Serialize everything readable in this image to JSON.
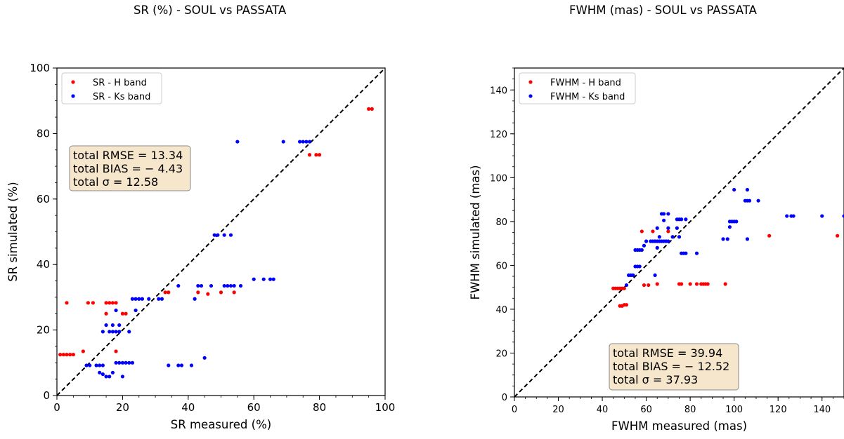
{
  "chart_data": [
    {
      "type": "scatter",
      "title": "SR (%) - SOUL vs PASSATA",
      "xlabel": "SR measured (%)",
      "ylabel": "SR simulated (%)",
      "xlim": [
        0,
        100
      ],
      "ylim": [
        0,
        100
      ],
      "xticks": [
        "0",
        "20",
        "40",
        "60",
        "80",
        "100"
      ],
      "yticks": [
        "0",
        "20",
        "40",
        "60",
        "80",
        "100"
      ],
      "legend_position": "top-left",
      "identity_line": true,
      "stats_box": {
        "position": "upper-left",
        "lines": [
          "total RMSE = 13.34",
          "total BIAS = − 4.43",
          "total σ = 12.58"
        ]
      },
      "series": [
        {
          "name": "SR - H band",
          "color": "#ff0000",
          "points": [
            [
              1,
              12.5
            ],
            [
              2,
              12.5
            ],
            [
              3,
              12.5
            ],
            [
              4,
              12.5
            ],
            [
              5,
              12.5
            ],
            [
              3,
              28.3
            ],
            [
              8,
              13.5
            ],
            [
              9.5,
              28.3
            ],
            [
              11,
              28.3
            ],
            [
              15,
              28.3
            ],
            [
              16,
              28.3
            ],
            [
              17,
              28.3
            ],
            [
              18,
              28.3
            ],
            [
              15,
              25
            ],
            [
              20,
              25
            ],
            [
              21,
              25
            ],
            [
              18,
              13.5
            ],
            [
              33,
              31.5
            ],
            [
              34,
              31.5
            ],
            [
              43,
              31.5
            ],
            [
              46,
              31
            ],
            [
              50,
              31.5
            ],
            [
              54,
              31.5
            ],
            [
              77,
              73.5
            ],
            [
              79,
              73.5
            ],
            [
              80,
              73.5
            ],
            [
              95,
              87.5
            ],
            [
              96,
              87.5
            ]
          ]
        },
        {
          "name": "SR - Ks band",
          "color": "#0000ff",
          "points": [
            [
              9,
              9.2
            ],
            [
              10,
              9.2
            ],
            [
              12,
              9.2
            ],
            [
              13,
              9.2
            ],
            [
              14,
              9.2
            ],
            [
              13,
              7
            ],
            [
              14,
              6.5
            ],
            [
              15,
              5.8
            ],
            [
              16,
              5.8
            ],
            [
              17,
              7
            ],
            [
              18,
              10
            ],
            [
              19,
              10
            ],
            [
              20,
              10
            ],
            [
              21,
              10
            ],
            [
              22,
              10
            ],
            [
              23,
              10
            ],
            [
              20,
              5.8
            ],
            [
              14,
              19.5
            ],
            [
              16,
              19.5
            ],
            [
              17,
              19.5
            ],
            [
              18,
              19.5
            ],
            [
              19,
              19.5
            ],
            [
              22,
              19.5
            ],
            [
              15,
              21.5
            ],
            [
              17,
              21.5
            ],
            [
              19,
              21.5
            ],
            [
              18,
              26
            ],
            [
              23,
              29.5
            ],
            [
              24,
              29.5
            ],
            [
              25,
              29.5
            ],
            [
              26,
              29.5
            ],
            [
              28,
              29.5
            ],
            [
              31,
              29.5
            ],
            [
              32,
              29.5
            ],
            [
              24,
              26
            ],
            [
              34,
              9.2
            ],
            [
              37,
              9.2
            ],
            [
              38,
              9.2
            ],
            [
              41,
              9.2
            ],
            [
              45,
              11.5
            ],
            [
              37,
              33.5
            ],
            [
              42,
              29.5
            ],
            [
              43,
              33.5
            ],
            [
              44,
              33.5
            ],
            [
              47,
              33.5
            ],
            [
              51,
              33.5
            ],
            [
              52,
              33.5
            ],
            [
              53,
              33.5
            ],
            [
              54,
              33.5
            ],
            [
              56,
              33.5
            ],
            [
              60,
              35.5
            ],
            [
              63,
              35.5
            ],
            [
              65,
              35.5
            ],
            [
              66,
              35.5
            ],
            [
              48,
              49
            ],
            [
              49,
              49
            ],
            [
              51,
              49
            ],
            [
              53,
              49
            ],
            [
              55,
              77.5
            ],
            [
              69,
              77.5
            ],
            [
              74,
              77.5
            ],
            [
              75,
              77.5
            ],
            [
              76,
              77.5
            ],
            [
              77,
              77.5
            ]
          ]
        }
      ]
    },
    {
      "type": "scatter",
      "title": "FWHM (mas) - SOUL vs PASSATA",
      "xlabel": "FWHM measured (mas)",
      "ylabel": "FWHM simulated (mas)",
      "xlim": [
        0,
        150
      ],
      "ylim": [
        0,
        150
      ],
      "xticks": [
        "0",
        "20",
        "40",
        "60",
        "80",
        "100",
        "120",
        "140"
      ],
      "yticks": [
        "0",
        "20",
        "40",
        "60",
        "80",
        "100",
        "120",
        "140"
      ],
      "legend_position": "top-left",
      "identity_line": true,
      "stats_box": {
        "position": "lower-center",
        "lines": [
          "total RMSE = 39.94",
          "total BIAS = − 12.52",
          "total σ = 37.93"
        ]
      },
      "series": [
        {
          "name": "FWHM - H band",
          "color": "#ff0000",
          "points": [
            [
              45,
              49.5
            ],
            [
              46,
              49.5
            ],
            [
              47,
              49.5
            ],
            [
              48,
              49.5
            ],
            [
              49,
              49.5
            ],
            [
              50,
              49.5
            ],
            [
              48,
              41.5
            ],
            [
              49,
              41.5
            ],
            [
              50,
              42
            ],
            [
              51,
              42
            ],
            [
              58,
              75.5
            ],
            [
              59,
              51
            ],
            [
              61,
              51
            ],
            [
              63,
              75.5
            ],
            [
              65,
              51.5
            ],
            [
              70,
              75.5
            ],
            [
              75,
              51.5
            ],
            [
              76,
              51.5
            ],
            [
              80,
              51.5
            ],
            [
              83,
              51.5
            ],
            [
              85,
              51.5
            ],
            [
              86,
              51.5
            ],
            [
              87,
              51.5
            ],
            [
              88,
              51.5
            ],
            [
              96,
              51.5
            ],
            [
              116,
              73.5
            ],
            [
              147,
              73.5
            ]
          ]
        },
        {
          "name": "FWHM - Ks band",
          "color": "#0000ff",
          "points": [
            [
              51,
              51
            ],
            [
              52,
              55.5
            ],
            [
              53,
              55.5
            ],
            [
              54,
              55.5
            ],
            [
              55,
              59.5
            ],
            [
              56,
              59.5
            ],
            [
              57,
              59.5
            ],
            [
              55,
              67
            ],
            [
              56,
              67
            ],
            [
              57,
              67
            ],
            [
              58,
              67
            ],
            [
              59,
              69
            ],
            [
              60,
              71
            ],
            [
              62,
              71
            ],
            [
              63,
              71
            ],
            [
              64,
              71
            ],
            [
              65,
              71
            ],
            [
              67,
              71
            ],
            [
              68,
              71
            ],
            [
              69,
              71
            ],
            [
              70,
              71
            ],
            [
              66,
              71
            ],
            [
              64,
              55.5
            ],
            [
              65,
              68
            ],
            [
              66,
              73
            ],
            [
              65,
              77
            ],
            [
              67,
              83.5
            ],
            [
              68,
              83.5
            ],
            [
              70,
              83.5
            ],
            [
              68,
              80.5
            ],
            [
              70,
              77
            ],
            [
              72,
              73
            ],
            [
              74,
              77
            ],
            [
              74,
              81
            ],
            [
              75,
              81
            ],
            [
              76,
              81
            ],
            [
              78,
              81
            ],
            [
              75,
              73
            ],
            [
              76,
              65.5
            ],
            [
              77,
              65.5
            ],
            [
              78,
              65.5
            ],
            [
              83,
              65.5
            ],
            [
              95,
              72
            ],
            [
              97,
              72
            ],
            [
              98,
              80
            ],
            [
              99,
              80
            ],
            [
              100,
              80
            ],
            [
              101,
              80
            ],
            [
              98,
              77.5
            ],
            [
              100,
              94.5
            ],
            [
              106,
              72
            ],
            [
              105,
              89.5
            ],
            [
              106,
              89.5
            ],
            [
              107,
              89.5
            ],
            [
              111,
              89.5
            ],
            [
              106,
              94.5
            ],
            [
              124,
              82.5
            ],
            [
              126,
              82.5
            ],
            [
              127,
              82.5
            ],
            [
              140,
              82.5
            ],
            [
              150,
              82.5
            ]
          ]
        }
      ]
    }
  ]
}
